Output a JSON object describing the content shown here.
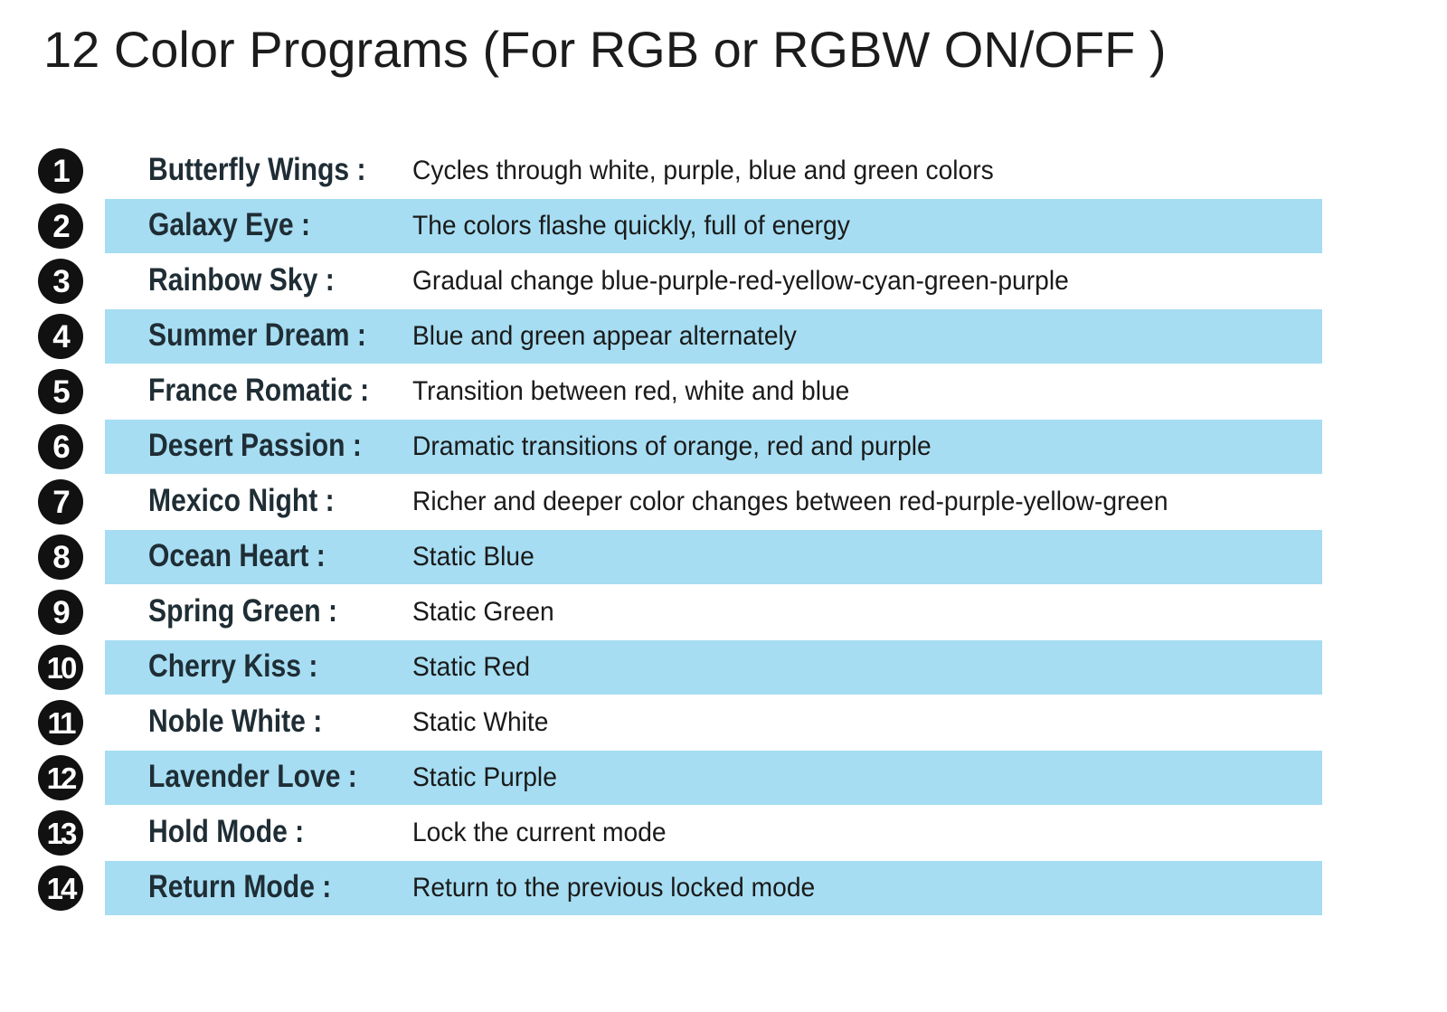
{
  "title": "12 Color Programs (For RGB or RGBW  ON/OFF )",
  "colors": {
    "row_highlight": "#a6ddf2",
    "badge_background": "#111111",
    "badge_text": "#ffffff"
  },
  "programs": [
    {
      "number": "1",
      "name": "Butterfly Wings :",
      "description": "Cycles through white, purple, blue and green colors"
    },
    {
      "number": "2",
      "name": "Galaxy Eye :",
      "description": "The colors flashe quickly, full of energy"
    },
    {
      "number": "3",
      "name": "Rainbow Sky :",
      "description": "Gradual change blue-purple-red-yellow-cyan-green-purple"
    },
    {
      "number": "4",
      "name": "Summer Dream :",
      "description": "Blue and green appear alternately"
    },
    {
      "number": "5",
      "name": "France Romatic :",
      "description": "Transition between red, white and blue"
    },
    {
      "number": "6",
      "name": "Desert Passion :",
      "description": "Dramatic transitions of orange, red and purple"
    },
    {
      "number": "7",
      "name": "Mexico Night :",
      "description": "Richer and deeper color changes between red-purple-yellow-green"
    },
    {
      "number": "8",
      "name": "Ocean Heart :",
      "description": "Static Blue"
    },
    {
      "number": "9",
      "name": "Spring Green :",
      "description": "Static Green"
    },
    {
      "number": "10",
      "name": "Cherry Kiss :",
      "description": "Static Red"
    },
    {
      "number": "11",
      "name": "Noble White :",
      "description": "Static White"
    },
    {
      "number": "12",
      "name": "Lavender Love :",
      "description": "Static Purple"
    },
    {
      "number": "13",
      "name": "Hold Mode :",
      "description": "Lock the current mode"
    },
    {
      "number": "14",
      "name": "Return Mode :",
      "description": "Return to the previous locked mode"
    }
  ]
}
